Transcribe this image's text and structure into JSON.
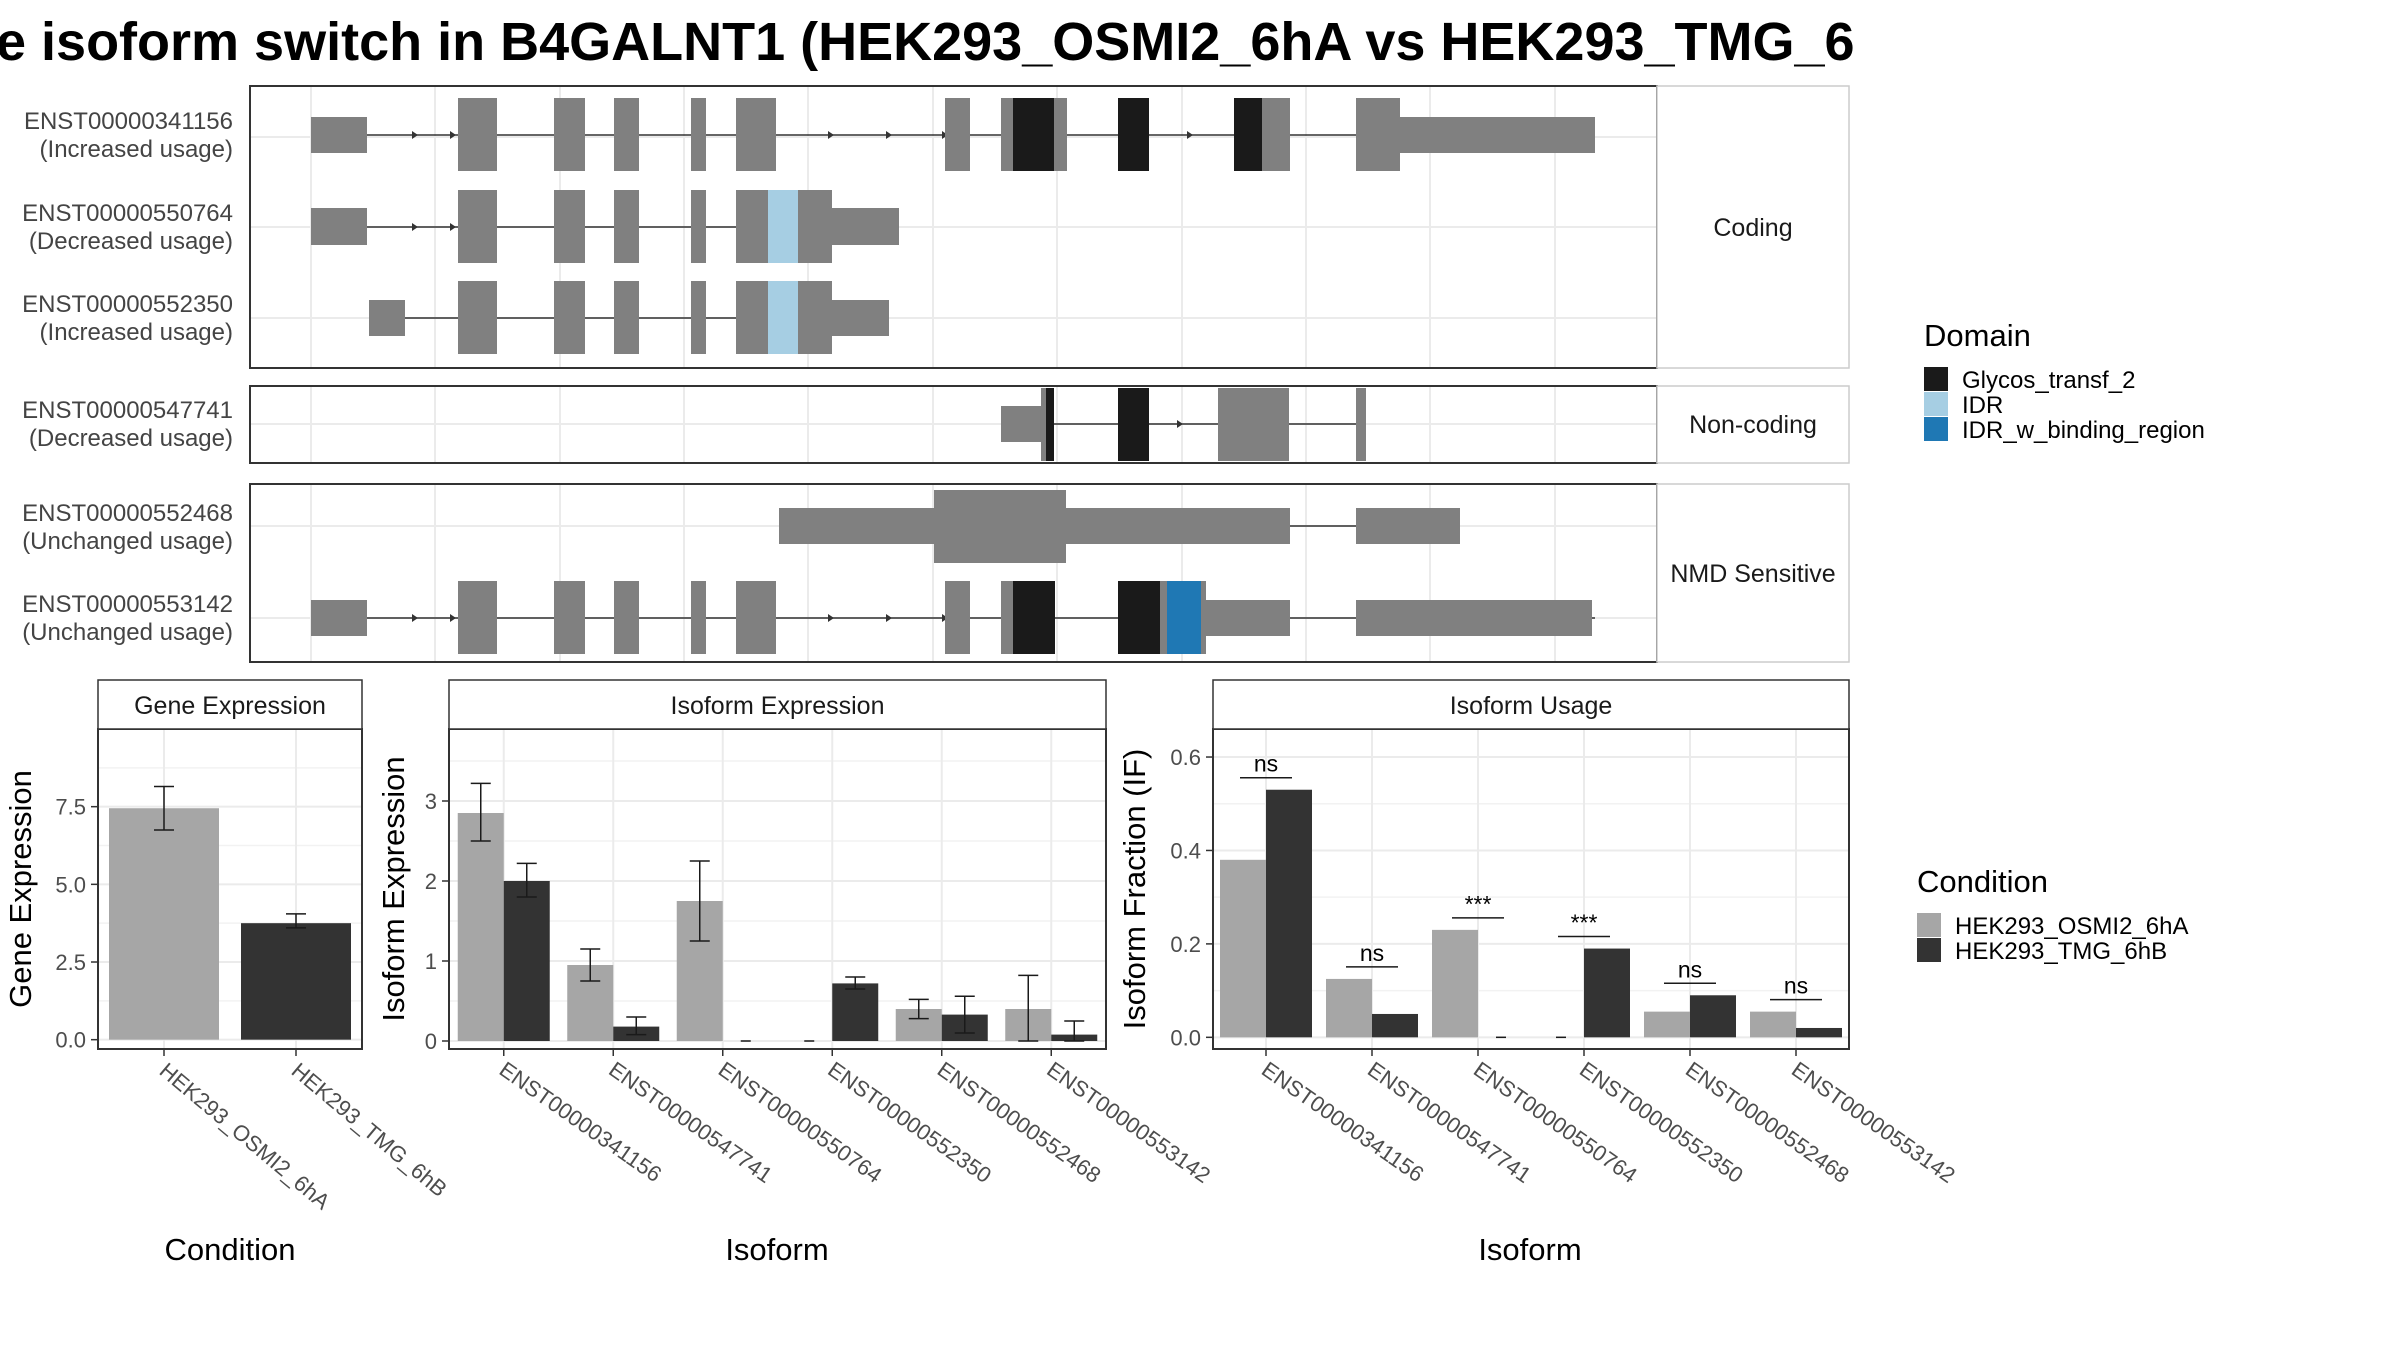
{
  "title": "e isoform switch in B4GALNT1 (HEK293_OSMI2_6hA vs HEK293_TMG_6",
  "colors": {
    "exon": "#808080",
    "Glycos_transf_2": "#1a1a1a",
    "IDR": "#a6cee3",
    "IDR_w_binding_region": "#1f78b4",
    "HEK293_OSMI2_6hA": "#a6a6a6",
    "HEK293_TMG_6hB": "#333333"
  },
  "transcript_panel": {
    "groups": [
      {
        "label": "Coding",
        "isoforms": [
          {
            "id": "ENST00000341156",
            "usage": "(Increased usage)"
          },
          {
            "id": "ENST00000550764",
            "usage": "(Decreased usage)"
          },
          {
            "id": "ENST00000552350",
            "usage": "(Increased usage)"
          }
        ]
      },
      {
        "label": "Non-coding",
        "isoforms": [
          {
            "id": "ENST00000547741",
            "usage": "(Decreased usage)"
          }
        ]
      },
      {
        "label": "NMD Sensitive",
        "isoforms": [
          {
            "id": "ENST00000552468",
            "usage": "(Unchanged usage)"
          },
          {
            "id": "ENST00000553142",
            "usage": "(Unchanged usage)"
          }
        ]
      }
    ]
  },
  "domain_legend": {
    "title": "Domain",
    "items": [
      "Glycos_transf_2",
      "IDR",
      "IDR_w_binding_region"
    ]
  },
  "condition_legend": {
    "title": "Condition",
    "items": [
      "HEK293_OSMI2_6hA",
      "HEK293_TMG_6hB"
    ]
  },
  "chart_data": [
    {
      "type": "bar",
      "title": "Gene Expression",
      "xlabel": "Condition",
      "ylabel": "Gene Expression",
      "categories": [
        "HEK293_OSMI2_6hA",
        "HEK293_TMG_6hB"
      ],
      "values": [
        7.45,
        3.75
      ],
      "errors": [
        [
          6.75,
          8.15
        ],
        [
          3.6,
          4.05
        ]
      ],
      "ylim": [
        -0.3,
        10.0
      ],
      "yticks": [
        0.0,
        2.5,
        5.0,
        7.5
      ],
      "ytick_labels": [
        "0.0",
        "2.5",
        "5.0",
        "7.5"
      ]
    },
    {
      "type": "bar",
      "title": "Isoform Expression",
      "xlabel": "Isoform",
      "ylabel": "Isoform Expression",
      "categories": [
        "ENST00000341156",
        "ENST00000547741",
        "ENST00000550764",
        "ENST00000552350",
        "ENST00000552468",
        "ENST00000553142"
      ],
      "series": [
        {
          "name": "HEK293_OSMI2_6hA",
          "values": [
            2.85,
            0.95,
            1.75,
            0.0,
            0.4,
            0.4
          ],
          "errors": [
            [
              2.5,
              3.22
            ],
            [
              0.75,
              1.15
            ],
            [
              1.25,
              2.25
            ],
            [
              0.0,
              0.0
            ],
            [
              0.28,
              0.52
            ],
            [
              0.0,
              0.82
            ]
          ]
        },
        {
          "name": "HEK293_TMG_6hB",
          "values": [
            2.0,
            0.18,
            0.0,
            0.72,
            0.33,
            0.08
          ],
          "errors": [
            [
              1.8,
              2.22
            ],
            [
              0.08,
              0.3
            ],
            [
              0.0,
              0.0
            ],
            [
              0.65,
              0.8
            ],
            [
              0.1,
              0.56
            ],
            [
              0.0,
              0.25
            ]
          ]
        }
      ],
      "ylim": [
        -0.1,
        3.9
      ],
      "yticks": [
        0,
        1,
        2,
        3
      ],
      "ytick_labels": [
        "0",
        "1",
        "2",
        "3"
      ]
    },
    {
      "type": "bar",
      "title": "Isoform Usage",
      "xlabel": "Isoform",
      "ylabel": "Isoform Fraction (IF)",
      "categories": [
        "ENST00000341156",
        "ENST00000547741",
        "ENST00000550764",
        "ENST00000552350",
        "ENST00000552468",
        "ENST00000553142"
      ],
      "series": [
        {
          "name": "HEK293_OSMI2_6hA",
          "values": [
            0.38,
            0.125,
            0.23,
            0.0,
            0.055,
            0.055
          ]
        },
        {
          "name": "HEK293_TMG_6hB",
          "values": [
            0.53,
            0.05,
            0.0,
            0.19,
            0.09,
            0.02
          ]
        }
      ],
      "significance": [
        "ns",
        "ns",
        "***",
        "***",
        "ns",
        "ns"
      ],
      "ylim": [
        -0.025,
        0.66
      ],
      "yticks": [
        0.0,
        0.2,
        0.4,
        0.6
      ],
      "ytick_labels": [
        "0.0",
        "0.2",
        "0.4",
        "0.6"
      ]
    }
  ]
}
